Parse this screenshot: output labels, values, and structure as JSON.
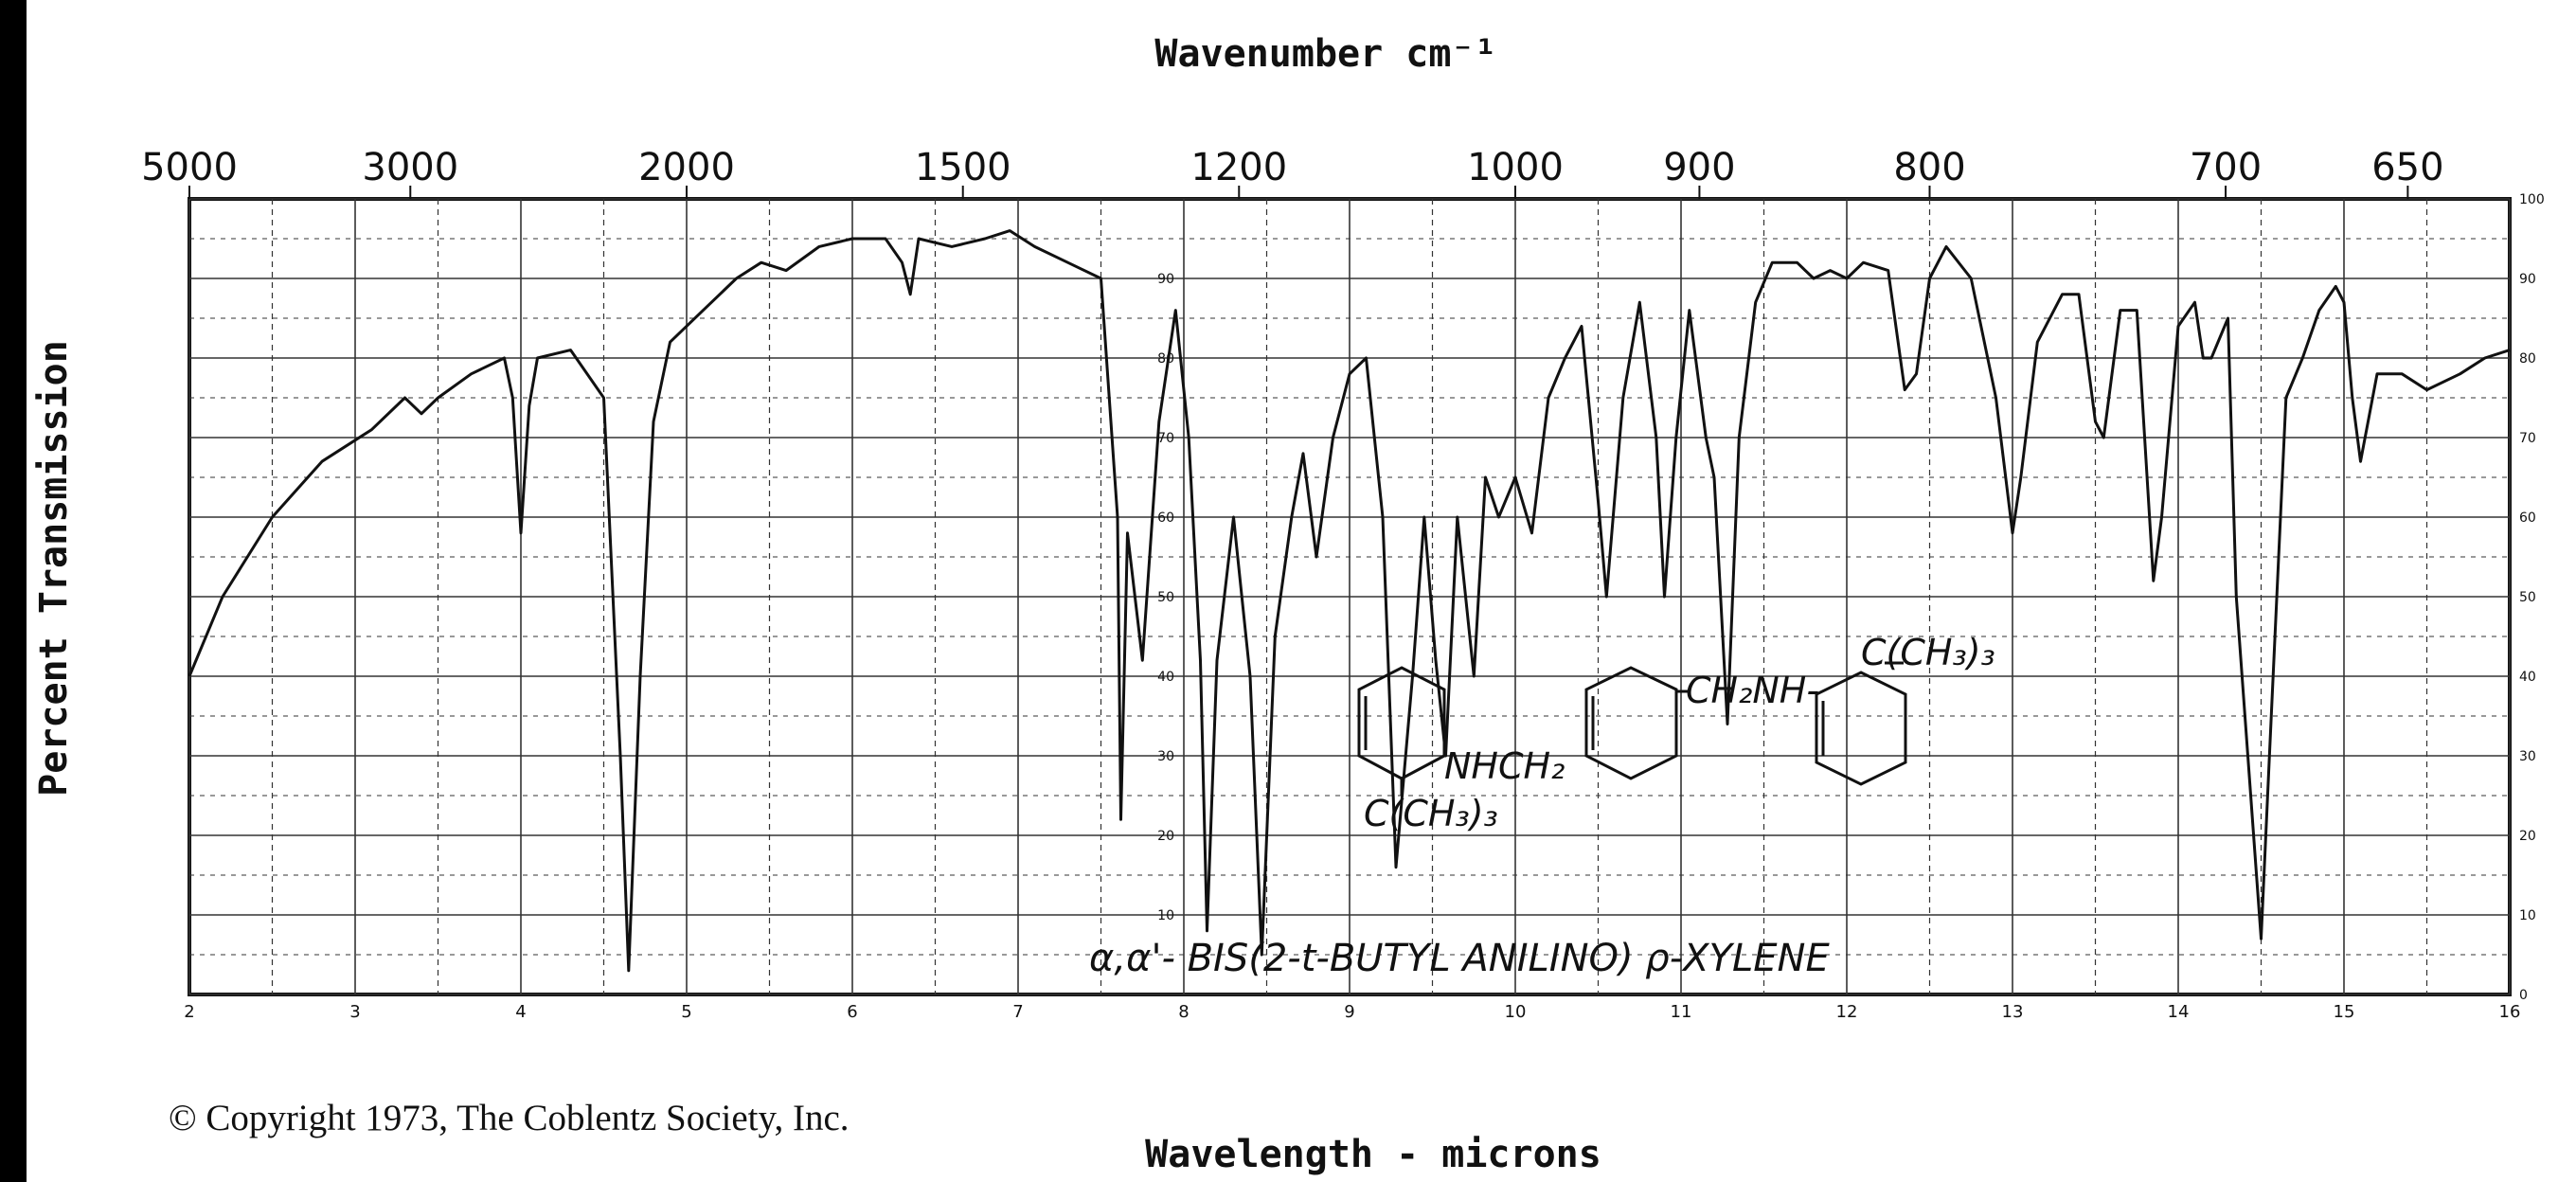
{
  "chart_data": {
    "type": "line",
    "title": "Wavenumber cm⁻¹",
    "xlabel": "Wavelength - microns",
    "ylabel": "Percent Transmission",
    "xlim": [
      2.0,
      16.0
    ],
    "ylim": [
      0,
      100
    ],
    "grid": true,
    "top_axis_ticks": [
      {
        "label": "5000",
        "micron": 2.0
      },
      {
        "label": "3000",
        "micron": 3.333
      },
      {
        "label": "2000",
        "micron": 5.0
      },
      {
        "label": "1500",
        "micron": 6.667
      },
      {
        "label": "1200",
        "micron": 8.333
      },
      {
        "label": "1000",
        "micron": 10.0
      },
      {
        "label": "900",
        "micron": 11.111
      },
      {
        "label": "800",
        "micron": 12.5
      },
      {
        "label": "700",
        "micron": 14.286
      },
      {
        "label": "650",
        "micron": 15.385
      }
    ],
    "bottom_axis_ticks": [
      {
        "label": "2",
        "micron": 2
      },
      {
        "label": "3",
        "micron": 3
      },
      {
        "label": "4",
        "micron": 4
      },
      {
        "label": "5",
        "micron": 5
      },
      {
        "label": "6",
        "micron": 6
      },
      {
        "label": "7",
        "micron": 7
      },
      {
        "label": "8",
        "micron": 8
      },
      {
        "label": "9",
        "micron": 9
      },
      {
        "label": "10",
        "micron": 10
      },
      {
        "label": "11",
        "micron": 11
      },
      {
        "label": "12",
        "micron": 12
      },
      {
        "label": "13",
        "micron": 13
      },
      {
        "label": "14",
        "micron": 14
      },
      {
        "label": "15",
        "micron": 15
      },
      {
        "label": "16",
        "micron": 16
      }
    ],
    "percent_ticks_right": [
      "100",
      "90",
      "80",
      "70",
      "60",
      "50",
      "40",
      "30",
      "20",
      "10",
      "0"
    ],
    "percent_ticks_inner": [
      "90",
      "80",
      "70",
      "60",
      "50",
      "40",
      "30",
      "20",
      "10"
    ],
    "series": [
      {
        "points": [
          [
            2.0,
            40
          ],
          [
            2.2,
            50
          ],
          [
            2.5,
            60
          ],
          [
            2.8,
            67
          ],
          [
            3.1,
            71
          ],
          [
            3.3,
            75
          ],
          [
            3.4,
            73
          ],
          [
            3.5,
            75
          ],
          [
            3.7,
            78
          ],
          [
            3.9,
            80
          ],
          [
            3.95,
            75
          ],
          [
            4.0,
            58
          ],
          [
            4.05,
            74
          ],
          [
            4.1,
            80
          ],
          [
            4.3,
            81
          ],
          [
            4.5,
            75
          ],
          [
            4.6,
            30
          ],
          [
            4.65,
            3
          ],
          [
            4.72,
            40
          ],
          [
            4.8,
            72
          ],
          [
            4.9,
            82
          ],
          [
            5.1,
            86
          ],
          [
            5.3,
            90
          ],
          [
            5.45,
            92
          ],
          [
            5.6,
            91
          ],
          [
            5.8,
            94
          ],
          [
            6.0,
            95
          ],
          [
            6.2,
            95
          ],
          [
            6.3,
            92
          ],
          [
            6.35,
            88
          ],
          [
            6.4,
            95
          ],
          [
            6.6,
            94
          ],
          [
            6.8,
            95
          ],
          [
            6.95,
            96
          ],
          [
            7.1,
            94
          ],
          [
            7.3,
            92
          ],
          [
            7.5,
            90
          ],
          [
            7.6,
            60
          ],
          [
            7.62,
            22
          ],
          [
            7.66,
            58
          ],
          [
            7.75,
            42
          ],
          [
            7.85,
            72
          ],
          [
            7.95,
            86
          ],
          [
            8.03,
            70
          ],
          [
            8.1,
            42
          ],
          [
            8.14,
            8
          ],
          [
            8.2,
            42
          ],
          [
            8.3,
            60
          ],
          [
            8.4,
            40
          ],
          [
            8.47,
            5
          ],
          [
            8.55,
            45
          ],
          [
            8.65,
            60
          ],
          [
            8.72,
            68
          ],
          [
            8.8,
            55
          ],
          [
            8.9,
            70
          ],
          [
            9.0,
            78
          ],
          [
            9.1,
            80
          ],
          [
            9.2,
            60
          ],
          [
            9.28,
            16
          ],
          [
            9.38,
            40
          ],
          [
            9.45,
            60
          ],
          [
            9.52,
            42
          ],
          [
            9.58,
            30
          ],
          [
            9.65,
            60
          ],
          [
            9.75,
            40
          ],
          [
            9.82,
            65
          ],
          [
            9.9,
            60
          ],
          [
            10.0,
            65
          ],
          [
            10.1,
            58
          ],
          [
            10.2,
            75
          ],
          [
            10.3,
            80
          ],
          [
            10.4,
            84
          ],
          [
            10.5,
            62
          ],
          [
            10.55,
            50
          ],
          [
            10.65,
            75
          ],
          [
            10.75,
            87
          ],
          [
            10.85,
            70
          ],
          [
            10.9,
            50
          ],
          [
            10.97,
            70
          ],
          [
            11.05,
            86
          ],
          [
            11.15,
            70
          ],
          [
            11.2,
            65
          ],
          [
            11.28,
            34
          ],
          [
            11.35,
            70
          ],
          [
            11.45,
            87
          ],
          [
            11.55,
            92
          ],
          [
            11.7,
            92
          ],
          [
            11.8,
            90
          ],
          [
            11.9,
            91
          ],
          [
            12.0,
            90
          ],
          [
            12.1,
            92
          ],
          [
            12.25,
            91
          ],
          [
            12.35,
            76
          ],
          [
            12.42,
            78
          ],
          [
            12.5,
            90
          ],
          [
            12.6,
            94
          ],
          [
            12.75,
            90
          ],
          [
            12.9,
            75
          ],
          [
            13.0,
            58
          ],
          [
            13.05,
            65
          ],
          [
            13.15,
            82
          ],
          [
            13.3,
            88
          ],
          [
            13.4,
            88
          ],
          [
            13.5,
            72
          ],
          [
            13.55,
            70
          ],
          [
            13.65,
            86
          ],
          [
            13.75,
            86
          ],
          [
            13.85,
            52
          ],
          [
            13.9,
            60
          ],
          [
            14.0,
            84
          ],
          [
            14.1,
            87
          ],
          [
            14.15,
            80
          ],
          [
            14.2,
            80
          ],
          [
            14.3,
            85
          ],
          [
            14.35,
            50
          ],
          [
            14.42,
            30
          ],
          [
            14.5,
            7
          ],
          [
            14.55,
            30
          ],
          [
            14.65,
            75
          ],
          [
            14.75,
            80
          ],
          [
            14.85,
            86
          ],
          [
            14.95,
            89
          ],
          [
            15.0,
            87
          ],
          [
            15.05,
            75
          ],
          [
            15.1,
            67
          ],
          [
            15.2,
            78
          ],
          [
            15.35,
            78
          ],
          [
            15.5,
            76
          ],
          [
            15.7,
            78
          ],
          [
            15.85,
            80
          ],
          [
            16.0,
            81
          ]
        ]
      }
    ],
    "annotations": {
      "compound_name": "α,α'- BIS(2-t-BUTYL ANILINO) ρ-XYLENE",
      "structure_group_1": "NHCH₂",
      "structure_group_2": "C(CH₃)₃",
      "structure_group_3": "CH₂NH-",
      "structure_group_4": "C(CH₃)₃"
    }
  },
  "footer": {
    "copyright": "© Copyright 1973, The Coblentz Society, Inc."
  }
}
